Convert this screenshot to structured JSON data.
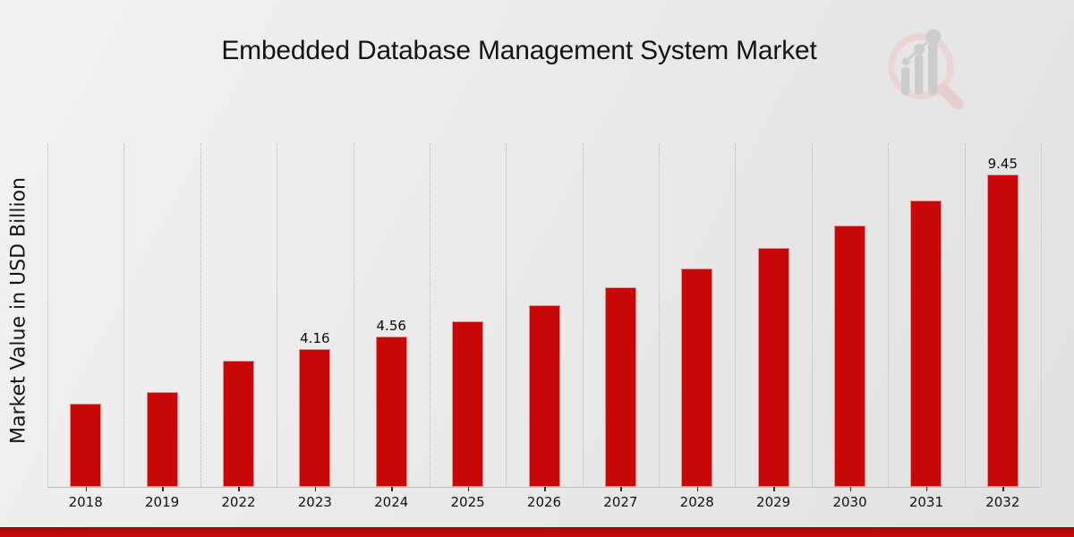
{
  "header": {
    "title": "Embedded Database Management System Market"
  },
  "axes": {
    "ylabel": "Market Value in USD Billion"
  },
  "logo": {
    "icon": "magnifier-bar-chart-logo",
    "ring_color": "#ead4d4",
    "bars_color": "#cccccc"
  },
  "colors": {
    "bar": "#c80808",
    "footer_accent": "#c40808",
    "gridline": "#b9b9b9",
    "axis_line": "#bfbfbf",
    "text": "#111111"
  },
  "chart_data": {
    "type": "bar",
    "title": "Embedded Database Management System Market",
    "xlabel": "",
    "ylabel": "Market Value in USD Billion",
    "categories": [
      "2018",
      "2019",
      "2022",
      "2023",
      "2024",
      "2025",
      "2026",
      "2027",
      "2028",
      "2029",
      "2030",
      "2031",
      "2032"
    ],
    "values": [
      2.51,
      2.87,
      3.81,
      4.16,
      4.56,
      5.0,
      5.5,
      6.03,
      6.61,
      7.24,
      7.92,
      8.67,
      9.45
    ],
    "value_labels": {
      "2023": "4.16",
      "2024": "4.56",
      "2032": "9.45"
    },
    "ylim": [
      0,
      10.4
    ],
    "grid": {
      "vertical": true,
      "horizontal": false,
      "style": "dotted"
    },
    "legend": "none",
    "bar_color": "#c80808"
  }
}
